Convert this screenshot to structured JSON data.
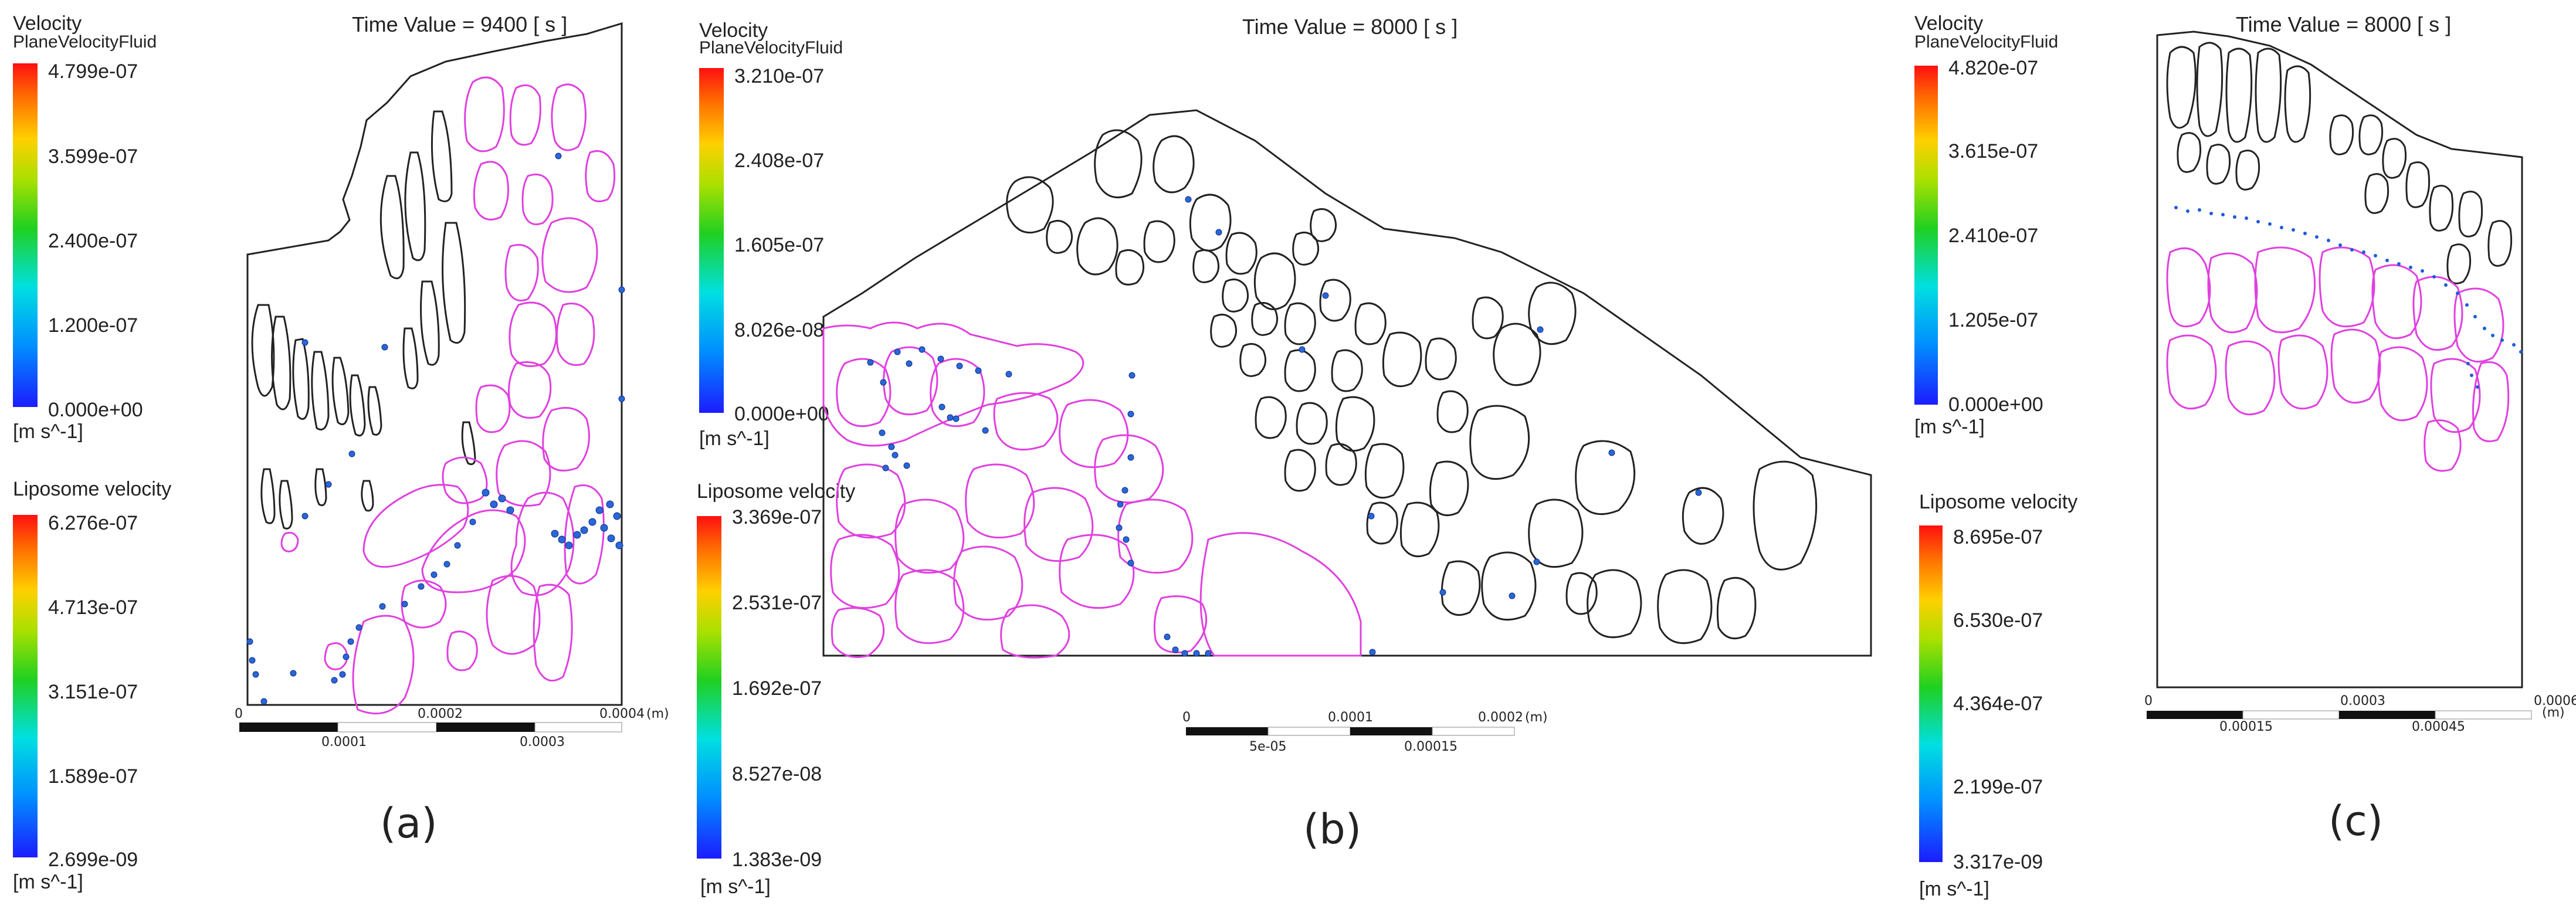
{
  "panels": [
    {
      "label": "(a)",
      "time": "Time Value = 9400 [ s ]",
      "fluid_legend": {
        "title": "Velocity",
        "subtitle": "PlaneVelocityFluid",
        "ticks": [
          "4.799e-07",
          "3.599e-07",
          "2.400e-07",
          "1.200e-07",
          "0.000e+00"
        ],
        "unit": "[m s^-1]"
      },
      "liposome_legend": {
        "title": "Liposome velocity",
        "ticks": [
          "6.276e-07",
          "4.713e-07",
          "3.151e-07",
          "1.589e-07",
          "2.699e-09"
        ],
        "unit": "[m s^-1]"
      },
      "scale": {
        "top": [
          "0",
          "0.0002",
          "0.0004",
          "(m)"
        ],
        "bottom": [
          "0.0001",
          "0.0003"
        ]
      }
    },
    {
      "label": "(b)",
      "time": "Time Value = 8000 [ s ]",
      "fluid_legend": {
        "title": "Velocity",
        "subtitle": "PlaneVelocityFluid",
        "ticks": [
          "3.210e-07",
          "2.408e-07",
          "1.605e-07",
          "8.026e-08",
          "0.000e+00"
        ],
        "unit": "[m s^-1]"
      },
      "liposome_legend": {
        "title": "Liposome velocity",
        "ticks": [
          "3.369e-07",
          "2.531e-07",
          "1.692e-07",
          "8.527e-08",
          "1.383e-09"
        ],
        "unit": "[m s^-1]"
      },
      "scale": {
        "top": [
          "0",
          "0.0001",
          "0.0002",
          "(m)"
        ],
        "bottom": [
          "5e-05",
          "0.00015"
        ]
      }
    },
    {
      "label": "(c)",
      "time": "Time Value = 8000 [ s ]",
      "fluid_legend": {
        "title": "Velocity",
        "subtitle": "PlaneVelocityFluid",
        "ticks": [
          "4.820e-07",
          "3.615e-07",
          "2.410e-07",
          "1.205e-07",
          "0.000e+00"
        ],
        "unit": "[m s^-1]"
      },
      "liposome_legend": {
        "title": "Liposome velocity",
        "ticks": [
          "8.695e-07",
          "6.530e-07",
          "4.364e-07",
          "2.199e-07",
          "3.317e-09"
        ],
        "unit": "[m s^-1]"
      },
      "scale": {
        "top": [
          "0",
          "0.0003",
          "0.0006",
          "(m)"
        ],
        "bottom": [
          "0.00015",
          "0.00045"
        ]
      }
    }
  ],
  "colors": {
    "tissue_outline": "#222222",
    "cell_outline": "#e040e0",
    "particle": "#1c5cd8"
  }
}
